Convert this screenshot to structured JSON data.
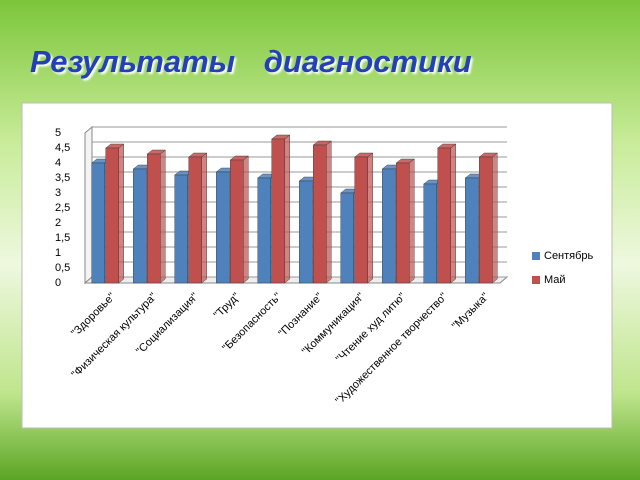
{
  "title": "Результаты диагностики",
  "chart_data": {
    "type": "bar",
    "categories": [
      "\"Здоровье\"",
      "\"Физическая культура\"",
      "\"Социализация\"",
      "\"Труд\"",
      "\"Безопасность\"",
      "\"Познание\"",
      "\"Коммуникация\"",
      "\"Чтение худ литю\"",
      "\"Художественное творчество\"",
      "\"Музыка\""
    ],
    "series": [
      {
        "name": "Сентябрь",
        "color": "#4f81bd",
        "values": [
          4.0,
          3.8,
          3.6,
          3.7,
          3.5,
          3.4,
          3.0,
          3.8,
          3.3,
          3.5
        ]
      },
      {
        "name": "Май",
        "color": "#c0504d",
        "values": [
          4.5,
          4.3,
          4.2,
          4.1,
          4.8,
          4.6,
          4.2,
          4.0,
          4.5,
          4.2
        ]
      }
    ],
    "ylim": [
      0,
      5
    ],
    "yticks": [
      0,
      {
        "value": 0.5,
        "label": "0,5"
      },
      1,
      {
        "value": 1.5,
        "label": "1,5"
      },
      2,
      {
        "value": 2.5,
        "label": "2,5"
      },
      3,
      {
        "value": 3.5,
        "label": "3,5"
      },
      4,
      {
        "value": 4.5,
        "label": "4,5"
      },
      5
    ],
    "legend": "right"
  }
}
